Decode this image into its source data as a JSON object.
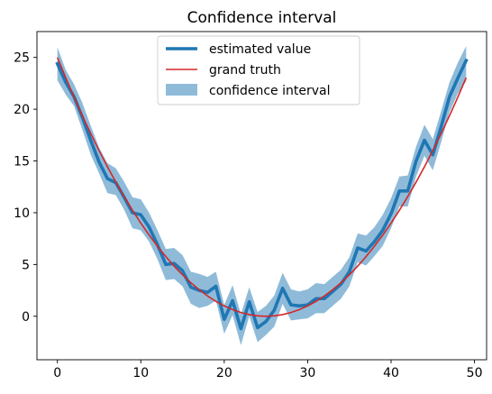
{
  "chart_data": {
    "type": "line",
    "title": "Confidence interval",
    "xlabel": "",
    "ylabel": "",
    "xlim": [
      -2.45,
      51.45
    ],
    "ylim": [
      -4.2,
      27.5
    ],
    "xticks": [
      0,
      10,
      20,
      30,
      40,
      50
    ],
    "yticks": [
      0,
      5,
      10,
      15,
      20,
      25
    ],
    "grid": false,
    "legend_position": "top-center",
    "x": [
      0,
      1,
      2,
      3,
      4,
      5,
      6,
      7,
      8,
      9,
      10,
      11,
      12,
      13,
      14,
      15,
      16,
      17,
      18,
      19,
      20,
      21,
      22,
      23,
      24,
      25,
      26,
      27,
      28,
      29,
      30,
      31,
      32,
      33,
      34,
      35,
      36,
      37,
      38,
      39,
      40,
      41,
      42,
      43,
      44,
      45,
      46,
      47,
      48,
      49
    ],
    "series": [
      {
        "name": "estimated value",
        "kind": "line",
        "color": "#1f77b4",
        "values": [
          24.4,
          22.6,
          21.2,
          19.2,
          17.0,
          14.9,
          13.3,
          12.9,
          11.5,
          10.0,
          9.8,
          8.6,
          6.9,
          5.0,
          5.1,
          4.4,
          2.8,
          2.5,
          2.3,
          2.9,
          -0.3,
          1.5,
          -1.2,
          1.4,
          -1.1,
          -0.5,
          0.6,
          2.7,
          1.1,
          1.0,
          1.1,
          1.7,
          1.7,
          2.4,
          3.1,
          4.3,
          6.6,
          6.3,
          7.2,
          8.3,
          9.9,
          12.1,
          12.1,
          15.0,
          17.0,
          15.6,
          18.3,
          21.2,
          23.0,
          24.7
        ]
      },
      {
        "name": "grand truth",
        "kind": "line",
        "color": "#d62728",
        "values": [
          25.0,
          23.04,
          21.16,
          19.36,
          17.64,
          16.0,
          14.44,
          12.96,
          11.56,
          10.24,
          9.0,
          7.84,
          6.76,
          5.76,
          4.84,
          4.0,
          3.24,
          2.56,
          1.96,
          1.44,
          1.0,
          0.64,
          0.36,
          0.16,
          0.04,
          0.0,
          0.04,
          0.16,
          0.36,
          0.64,
          1.0,
          1.44,
          1.96,
          2.56,
          3.24,
          4.0,
          4.84,
          5.76,
          6.76,
          7.84,
          9.0,
          10.24,
          11.56,
          12.96,
          14.44,
          16.0,
          17.64,
          19.36,
          21.16,
          23.04
        ]
      },
      {
        "name": "confidence interval",
        "kind": "band",
        "color": "#1f77b4",
        "alpha": 0.5,
        "lower": [
          22.8,
          21.4,
          20.3,
          18.0,
          15.6,
          13.8,
          11.9,
          11.7,
          10.3,
          8.5,
          8.3,
          7.2,
          5.5,
          3.5,
          3.6,
          2.9,
          1.2,
          0.8,
          1.0,
          1.5,
          -1.7,
          0.1,
          -2.8,
          0.0,
          -2.5,
          -1.8,
          -1.0,
          1.2,
          -0.4,
          -0.3,
          -0.2,
          0.3,
          0.3,
          1.0,
          1.7,
          2.9,
          5.2,
          4.9,
          5.8,
          6.8,
          8.5,
          10.6,
          10.6,
          13.5,
          15.5,
          14.1,
          16.8,
          19.7,
          21.5,
          22.7
        ]
      },
      {
        "name": "",
        "kind": "band-upper",
        "upper": [
          26.0,
          23.8,
          22.4,
          20.6,
          18.4,
          16.3,
          14.8,
          14.3,
          13.0,
          11.5,
          11.3,
          10.0,
          8.3,
          6.5,
          6.6,
          5.9,
          4.3,
          4.1,
          3.8,
          4.3,
          1.1,
          3.0,
          0.2,
          2.8,
          0.4,
          1.0,
          2.0,
          4.2,
          2.6,
          2.4,
          2.6,
          3.2,
          3.1,
          3.8,
          4.5,
          5.7,
          8.0,
          7.8,
          8.6,
          9.8,
          11.4,
          13.5,
          13.6,
          16.4,
          18.5,
          17.1,
          19.8,
          22.6,
          24.5,
          26.1
        ]
      }
    ]
  }
}
